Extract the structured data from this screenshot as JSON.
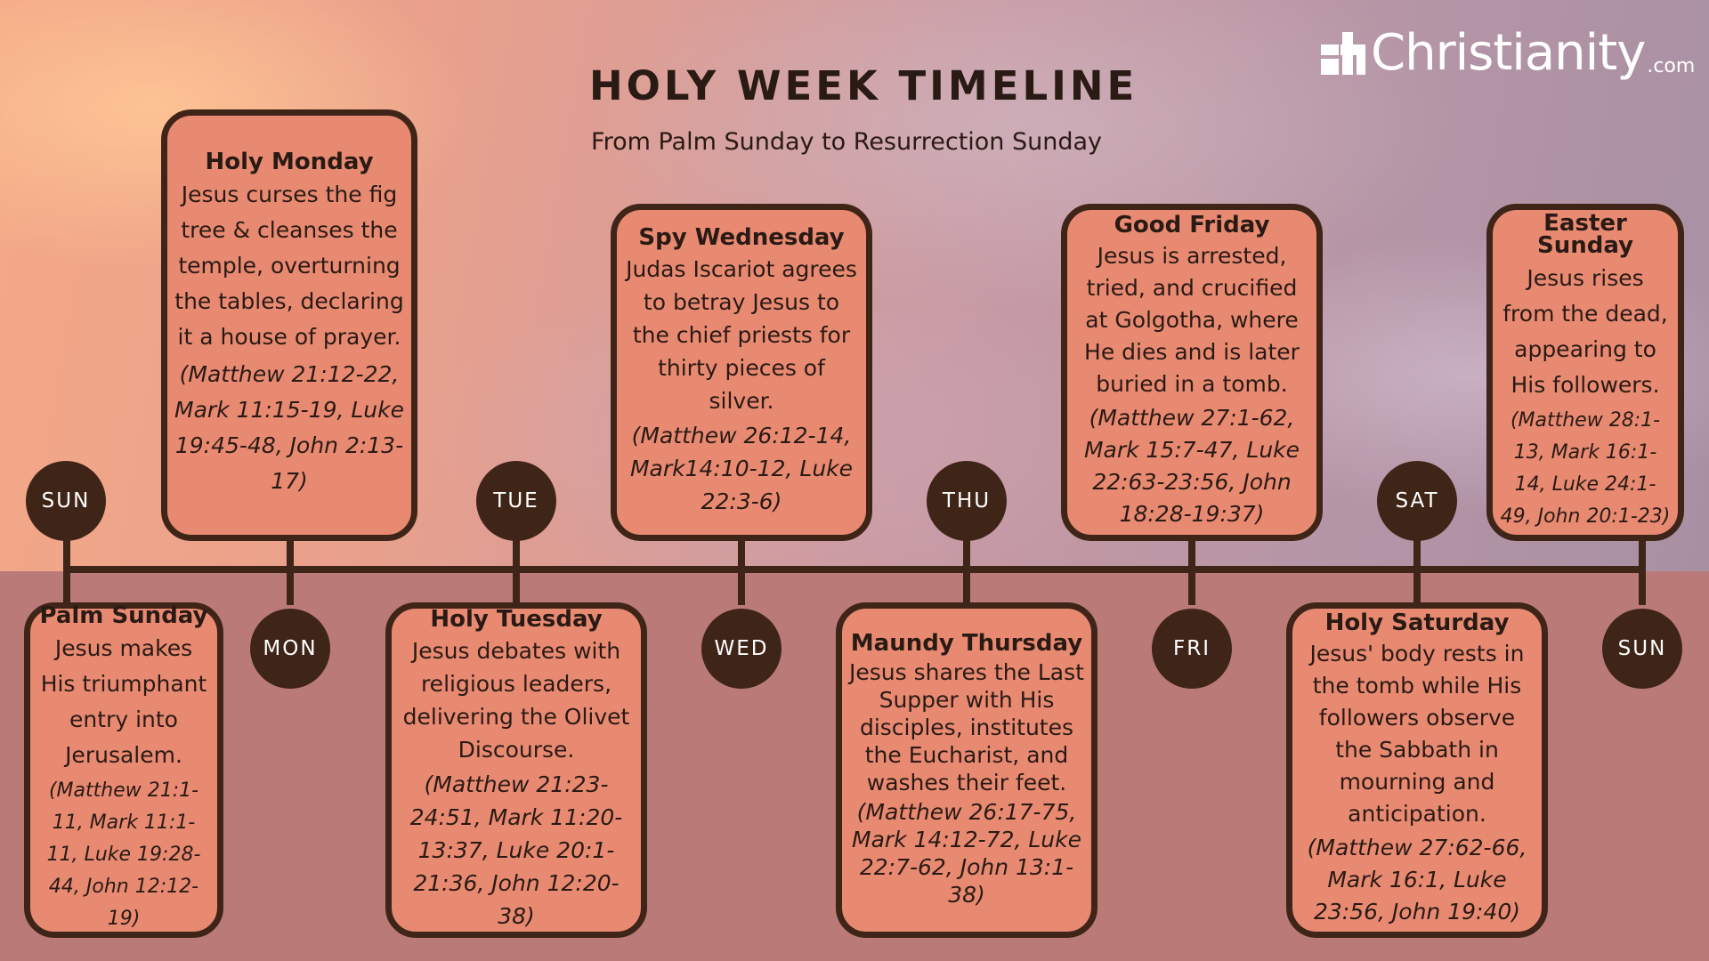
{
  "header": {
    "title": "HOLY WEEK TIMELINE",
    "subtitle": "From Palm Sunday to Resurrection Sunday"
  },
  "logo": {
    "text": "Christianity",
    "suffix": ".com"
  },
  "days": [
    "SUN",
    "MON",
    "TUE",
    "WED",
    "THU",
    "FRI",
    "SAT",
    "SUN"
  ],
  "events": [
    {
      "title": "Palm Sunday",
      "description": "Jesus makes His triumphant entry into Jerusalem.",
      "references": "(Matthew 21:1-11, Mark 11:1-11, Luke 19:28-44, John 12:12-19)"
    },
    {
      "title": "Holy Monday",
      "description": "Jesus curses the fig tree & cleanses the temple, overturning the tables, declaring it a house of prayer.",
      "references": "(Matthew 21:12-22, Mark 11:15-19, Luke 19:45-48, John 2:13-17)"
    },
    {
      "title": "Holy Tuesday",
      "description": "Jesus debates with religious leaders, delivering the Olivet Discourse.",
      "references": "(Matthew 21:23-24:51, Mark 11:20-13:37, Luke 20:1-21:36, John 12:20-38)"
    },
    {
      "title": "Spy Wednesday",
      "description": "Judas Iscariot agrees to betray Jesus to the chief priests for thirty pieces of silver.",
      "references": "(Matthew 26:12-14, Mark14:10-12, Luke 22:3-6)"
    },
    {
      "title": "Maundy Thursday",
      "description": "Jesus shares the Last Supper with His disciples, institutes the Eucharist, and washes their feet.",
      "references": "(Matthew 26:17-75, Mark 14:12-72, Luke 22:7-62, John 13:1-38)"
    },
    {
      "title": "Good Friday",
      "description": "Jesus is arrested, tried, and crucified at Golgotha, where He dies and is later buried in a tomb.",
      "references": "(Matthew 27:1-62, Mark 15:7-47, Luke 22:63-23:56, John 18:28-19:37)"
    },
    {
      "title": "Holy Saturday",
      "description": "Jesus' body rests in the tomb while His followers observe the Sabbath in mourning and anticipation.",
      "references": "(Matthew 27:62-66, Mark 16:1, Luke 23:56, John 19:40)"
    },
    {
      "title": "Easter Sunday",
      "description": "Jesus rises from the dead, appearing to His followers.",
      "references": "(Matthew 28:1-13, Mark 16:1-14, Luke 24:1-49, John 20:1-23)"
    }
  ],
  "colors": {
    "card_fill": "#e88a72",
    "outline": "#3f2418",
    "ground": "#b97a78"
  }
}
